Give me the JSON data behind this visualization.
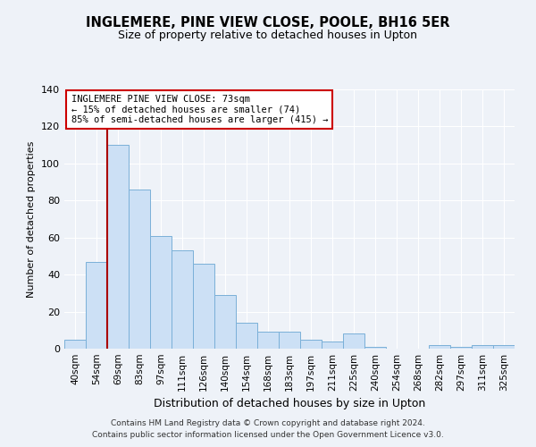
{
  "title": "INGLEMERE, PINE VIEW CLOSE, POOLE, BH16 5ER",
  "subtitle": "Size of property relative to detached houses in Upton",
  "xlabel": "Distribution of detached houses by size in Upton",
  "ylabel": "Number of detached properties",
  "bar_labels": [
    "40sqm",
    "54sqm",
    "69sqm",
    "83sqm",
    "97sqm",
    "111sqm",
    "126sqm",
    "140sqm",
    "154sqm",
    "168sqm",
    "183sqm",
    "197sqm",
    "211sqm",
    "225sqm",
    "240sqm",
    "254sqm",
    "268sqm",
    "282sqm",
    "297sqm",
    "311sqm",
    "325sqm"
  ],
  "bar_values": [
    5,
    47,
    110,
    86,
    61,
    53,
    46,
    29,
    14,
    9,
    9,
    5,
    4,
    8,
    1,
    0,
    0,
    2,
    1,
    2,
    2
  ],
  "bar_color": "#cce0f5",
  "bar_edge_color": "#7ab0d8",
  "ylim": [
    0,
    140
  ],
  "yticks": [
    0,
    20,
    40,
    60,
    80,
    100,
    120,
    140
  ],
  "vline_index": 2,
  "vline_color": "#aa0000",
  "annotation_title": "INGLEMERE PINE VIEW CLOSE: 73sqm",
  "annotation_line1": "← 15% of detached houses are smaller (74)",
  "annotation_line2": "85% of semi-detached houses are larger (415) →",
  "annotation_box_color": "#ffffff",
  "annotation_box_edge": "#cc0000",
  "footer1": "Contains HM Land Registry data © Crown copyright and database right 2024.",
  "footer2": "Contains public sector information licensed under the Open Government Licence v3.0.",
  "bg_color": "#eef2f8",
  "plot_bg_color": "#eef2f8"
}
